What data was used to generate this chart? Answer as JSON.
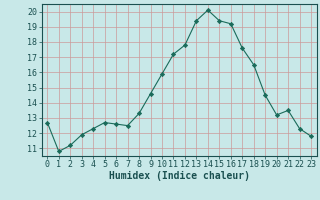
{
  "x": [
    0,
    1,
    2,
    3,
    4,
    5,
    6,
    7,
    8,
    9,
    10,
    11,
    12,
    13,
    14,
    15,
    16,
    17,
    18,
    19,
    20,
    21,
    22,
    23
  ],
  "y": [
    12.7,
    10.8,
    11.2,
    11.9,
    12.3,
    12.7,
    12.6,
    12.5,
    13.3,
    14.6,
    15.9,
    17.2,
    17.8,
    19.4,
    20.1,
    19.4,
    19.2,
    17.6,
    16.5,
    14.5,
    13.2,
    13.5,
    12.3,
    11.8
  ],
  "line_color": "#1a6b5a",
  "marker": "D",
  "marker_size": 2.2,
  "bg_color": "#c8e8e8",
  "grid_color": "#cc9999",
  "xlabel": "Humidex (Indice chaleur)",
  "xlim": [
    -0.5,
    23.5
  ],
  "ylim": [
    10.5,
    20.5
  ],
  "yticks": [
    11,
    12,
    13,
    14,
    15,
    16,
    17,
    18,
    19,
    20
  ],
  "xticks": [
    0,
    1,
    2,
    3,
    4,
    5,
    6,
    7,
    8,
    9,
    10,
    11,
    12,
    13,
    14,
    15,
    16,
    17,
    18,
    19,
    20,
    21,
    22,
    23
  ],
  "tick_color": "#1a5050",
  "xlabel_fontsize": 7,
  "tick_fontsize": 6,
  "xlabel_color": "#1a5050",
  "spine_color": "#1a5050"
}
